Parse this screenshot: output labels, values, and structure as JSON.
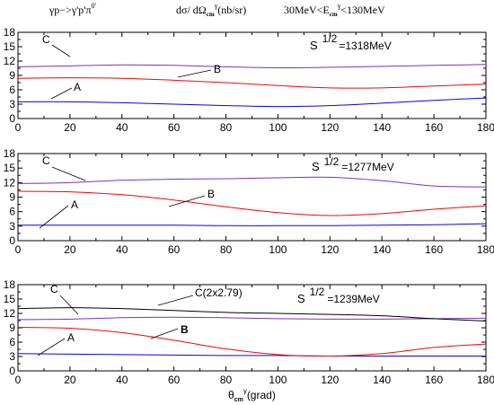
{
  "header": {
    "reaction": "γp−>γ'p'π",
    "reaction_sup": "0'",
    "observable": "dσ/ dΩ",
    "observable_sub": "cm",
    "observable_sup": "γ",
    "observable_unit": "(nb/sr)",
    "energy_range_pre": "30MeV<E",
    "energy_range_sub": "cm",
    "energy_range_sup": "γ",
    "energy_range_post": "<130MeV"
  },
  "xlabel": {
    "symbol": "θ",
    "sub": "cm",
    "sup": "γ",
    "unit": "(grad)"
  },
  "colors": {
    "A": "#0000ff",
    "B": "#ff0000",
    "C": "#7f2fbf",
    "C(2x2.79)": "#000000"
  },
  "chart_data": [
    {
      "type": "line",
      "energy_label": {
        "prefix": "S",
        "sup": "1/2",
        "value": "=1318MeV"
      },
      "xlim": [
        0,
        180
      ],
      "ylim": [
        0,
        18
      ],
      "xticks": [
        0,
        20,
        40,
        60,
        80,
        100,
        120,
        140,
        160,
        180
      ],
      "yticks": [
        0,
        3,
        6,
        9,
        12,
        15,
        18
      ],
      "series": [
        {
          "name": "A",
          "x": [
            0,
            20,
            40,
            60,
            80,
            100,
            120,
            140,
            160,
            180
          ],
          "y": [
            3.5,
            3.5,
            3.3,
            3.0,
            2.7,
            2.5,
            2.7,
            3.2,
            3.8,
            4.3
          ]
        },
        {
          "name": "B",
          "x": [
            0,
            20,
            40,
            60,
            80,
            100,
            120,
            140,
            160,
            180
          ],
          "y": [
            8.4,
            8.5,
            8.4,
            8.0,
            7.5,
            6.9,
            6.4,
            6.4,
            6.8,
            7.2
          ]
        },
        {
          "name": "C",
          "x": [
            0,
            20,
            40,
            60,
            80,
            100,
            120,
            140,
            160,
            180
          ],
          "y": [
            10.8,
            11.0,
            11.2,
            11.1,
            10.8,
            10.6,
            10.7,
            10.9,
            11.1,
            11.3
          ]
        }
      ]
    },
    {
      "type": "line",
      "energy_label": {
        "prefix": "S",
        "sup": "1/2",
        "value": "=1277MeV"
      },
      "xlim": [
        0,
        180
      ],
      "ylim": [
        0,
        18
      ],
      "xticks": [
        0,
        20,
        40,
        60,
        80,
        100,
        120,
        140,
        160,
        180
      ],
      "yticks": [
        0,
        3,
        6,
        9,
        12,
        15,
        18
      ],
      "series": [
        {
          "name": "A",
          "x": [
            0,
            20,
            40,
            60,
            80,
            100,
            120,
            140,
            160,
            180
          ],
          "y": [
            3.2,
            3.2,
            3.2,
            3.2,
            3.1,
            3.1,
            3.1,
            3.2,
            3.3,
            3.5
          ]
        },
        {
          "name": "B",
          "x": [
            0,
            20,
            40,
            60,
            80,
            100,
            120,
            140,
            160,
            180
          ],
          "y": [
            10.2,
            10.1,
            9.5,
            8.4,
            7.0,
            5.8,
            5.2,
            5.6,
            6.5,
            7.2
          ]
        },
        {
          "name": "C",
          "x": [
            0,
            20,
            40,
            60,
            80,
            100,
            120,
            140,
            160,
            180
          ],
          "y": [
            11.8,
            12.0,
            12.5,
            12.7,
            12.8,
            13.0,
            13.1,
            12.4,
            11.3,
            11.1
          ]
        }
      ]
    },
    {
      "type": "line",
      "energy_label": {
        "prefix": "S",
        "sup": "1/2",
        "value": "=1239MeV"
      },
      "xlim": [
        0,
        180
      ],
      "ylim": [
        0,
        18
      ],
      "xticks": [
        0,
        20,
        40,
        60,
        80,
        100,
        120,
        140,
        160,
        180
      ],
      "yticks": [
        0,
        3,
        6,
        9,
        12,
        15,
        18
      ],
      "series": [
        {
          "name": "A",
          "x": [
            0,
            20,
            40,
            60,
            80,
            100,
            120,
            140,
            160,
            180
          ],
          "y": [
            3.6,
            3.5,
            3.4,
            3.3,
            3.2,
            3.2,
            3.1,
            3.1,
            3.1,
            3.1
          ]
        },
        {
          "name": "B",
          "x": [
            0,
            20,
            40,
            60,
            80,
            100,
            120,
            140,
            160,
            180
          ],
          "y": [
            9.1,
            8.9,
            8.0,
            6.4,
            4.6,
            3.4,
            3.1,
            3.6,
            4.9,
            5.6
          ]
        },
        {
          "name": "C",
          "x": [
            0,
            20,
            40,
            60,
            80,
            100,
            120,
            140,
            160,
            180
          ],
          "y": [
            10.7,
            10.8,
            11.1,
            11.2,
            11.1,
            10.9,
            10.8,
            10.8,
            10.9,
            11.0
          ]
        },
        {
          "name": "C(2x2.79)",
          "x": [
            0,
            20,
            40,
            60,
            80,
            100,
            120,
            140,
            160,
            180
          ],
          "y": [
            13.0,
            13.2,
            13.0,
            12.6,
            12.2,
            12.0,
            11.8,
            11.5,
            10.9,
            10.4
          ]
        }
      ]
    }
  ]
}
